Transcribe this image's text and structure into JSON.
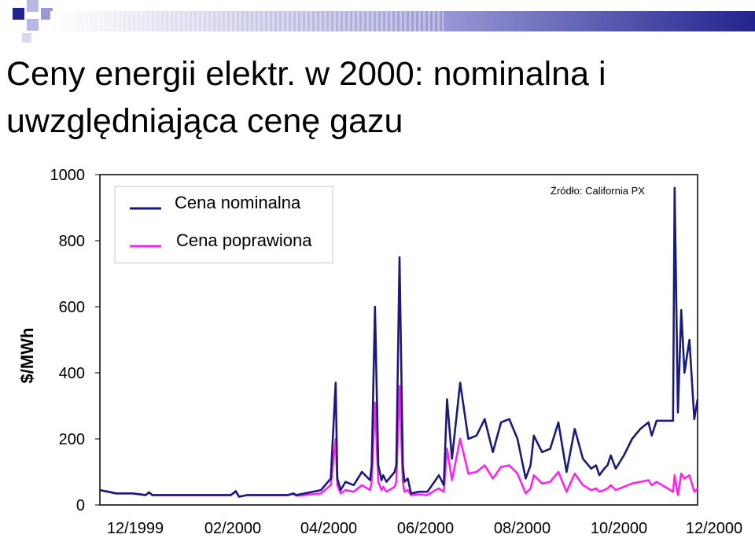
{
  "slide": {
    "title_line1": "Ceny energii elektr. w 2000: nominalna i",
    "title_line2": "uwzględniająca cenę gazu"
  },
  "colors": {
    "nominal": "#1a1a7a",
    "adjusted": "#ff22ee",
    "deco_dark": "#23238e",
    "deco_light": "#b8b8e6"
  },
  "chart_data": {
    "type": "line",
    "source": "Źródło: California PX",
    "ylabel": "$/MWh",
    "xlabel": "",
    "ylim": [
      0,
      1000
    ],
    "y_ticks": [
      "0",
      "200",
      "400",
      "600",
      "800",
      "1000"
    ],
    "x_ticks": [
      "12/1999",
      "02/2000",
      "04/2000",
      "06/2000",
      "08/2000",
      "10/2000",
      "12/2000"
    ],
    "x_range": [
      0,
      365
    ],
    "series": [
      {
        "name": "Cena nominalna",
        "x": [
          0,
          5,
          10,
          20,
          28,
          30,
          32,
          40,
          50,
          60,
          70,
          80,
          83,
          85,
          90,
          100,
          110,
          115,
          118,
          120,
          125,
          135,
          141,
          144,
          145,
          147,
          150,
          155,
          160,
          165,
          166,
          168,
          170,
          172,
          173,
          175,
          180,
          181,
          183,
          185,
          186,
          188,
          190,
          195,
          200,
          205,
          207,
          210,
          212,
          215,
          220,
          225,
          230,
          235,
          240,
          245,
          250,
          255,
          260,
          263,
          265,
          270,
          275,
          280,
          285,
          290,
          295,
          300,
          303,
          305,
          308,
          310,
          312,
          315,
          320,
          325,
          330,
          335,
          337,
          340,
          345,
          350,
          351,
          353,
          355,
          357,
          360,
          363,
          365
        ],
        "y": [
          45,
          40,
          35,
          35,
          30,
          38,
          30,
          30,
          30,
          30,
          30,
          30,
          42,
          25,
          30,
          30,
          30,
          30,
          35,
          30,
          35,
          45,
          80,
          370,
          80,
          45,
          70,
          60,
          100,
          75,
          120,
          600,
          120,
          75,
          90,
          70,
          100,
          120,
          750,
          120,
          70,
          80,
          35,
          40,
          40,
          75,
          90,
          60,
          320,
          140,
          370,
          200,
          210,
          260,
          160,
          250,
          260,
          200,
          80,
          120,
          210,
          160,
          170,
          250,
          100,
          230,
          140,
          110,
          120,
          90,
          110,
          120,
          150,
          110,
          150,
          200,
          230,
          250,
          210,
          255,
          255,
          255,
          960,
          280,
          590,
          400,
          500,
          260,
          320
        ]
      },
      {
        "name": "Cena poprawiona",
        "x": [
          0,
          5,
          10,
          20,
          28,
          30,
          32,
          40,
          50,
          60,
          70,
          80,
          83,
          85,
          90,
          100,
          110,
          115,
          118,
          120,
          125,
          135,
          141,
          144,
          145,
          147,
          150,
          155,
          160,
          165,
          166,
          168,
          170,
          172,
          173,
          175,
          180,
          181,
          183,
          185,
          186,
          188,
          190,
          195,
          200,
          205,
          207,
          210,
          212,
          215,
          220,
          225,
          230,
          235,
          240,
          245,
          250,
          255,
          260,
          263,
          265,
          270,
          275,
          280,
          285,
          290,
          295,
          300,
          303,
          305,
          308,
          310,
          312,
          315,
          320,
          325,
          330,
          335,
          337,
          340,
          345,
          350,
          351,
          353,
          355,
          357,
          360,
          363,
          365
        ],
        "y": [
          45,
          40,
          35,
          35,
          30,
          38,
          30,
          30,
          30,
          30,
          30,
          30,
          40,
          25,
          30,
          30,
          30,
          30,
          33,
          28,
          30,
          35,
          60,
          200,
          60,
          35,
          45,
          40,
          60,
          45,
          70,
          310,
          70,
          45,
          55,
          40,
          55,
          70,
          360,
          70,
          40,
          45,
          30,
          32,
          30,
          45,
          50,
          40,
          170,
          75,
          200,
          95,
          100,
          120,
          80,
          115,
          120,
          95,
          35,
          50,
          90,
          65,
          70,
          100,
          40,
          95,
          60,
          45,
          50,
          40,
          45,
          50,
          60,
          45,
          55,
          65,
          70,
          75,
          60,
          70,
          55,
          40,
          90,
          30,
          95,
          80,
          90,
          40,
          50
        ]
      }
    ]
  }
}
